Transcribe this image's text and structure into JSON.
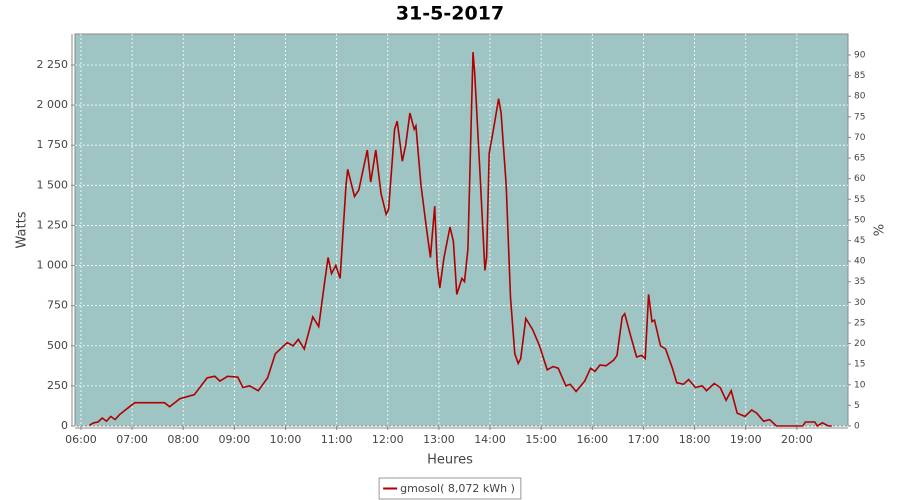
{
  "chart_data": {
    "type": "line",
    "title": "31-5-2017",
    "x_label": "Heures",
    "y_label": "Watts",
    "y2_label": "%",
    "grid": true,
    "legend": "bottom",
    "plot_background": "#9fc4c4",
    "xlim": [
      "05:53",
      "21:00"
    ],
    "xticks": [
      "06:00",
      "07:00",
      "08:00",
      "09:00",
      "10:00",
      "11:00",
      "12:00",
      "13:00",
      "14:00",
      "15:00",
      "16:00",
      "17:00",
      "18:00",
      "19:00",
      "20:00"
    ],
    "ylim": [
      0,
      2443
    ],
    "yticks": [
      0,
      250,
      500,
      750,
      {
        "value": 1000,
        "label": "1 000"
      },
      {
        "value": 1250,
        "label": "1 250"
      },
      {
        "value": 1500,
        "label": "1 500"
      },
      {
        "value": 1750,
        "label": "1 750"
      },
      {
        "value": 2000,
        "label": "2 000"
      },
      {
        "value": 2250,
        "label": "2 250"
      }
    ],
    "y2lim": [
      0,
      95.1
    ],
    "y2ticks": [
      0,
      5,
      10,
      15,
      20,
      25,
      30,
      35,
      40,
      45,
      50,
      55,
      60,
      65,
      70,
      75,
      80,
      85,
      90
    ],
    "x": [
      "06:10",
      "06:15",
      "06:20",
      "06:25",
      "06:30",
      "06:35",
      "06:40",
      "06:45",
      "06:52",
      "07:03",
      "07:38",
      "07:44",
      "07:56",
      "08:13",
      "08:28",
      "08:37",
      "08:43",
      "08:52",
      "09:04",
      "09:10",
      "09:18",
      "09:28",
      "09:39",
      "09:48",
      "10:02",
      "10:09",
      "10:15",
      "10:22",
      "10:32",
      "10:39",
      "10:46",
      "10:50",
      "10:54",
      "10:59",
      "11:04",
      "11:11",
      "11:13",
      "11:21",
      "11:26",
      "11:36",
      "11:40",
      "11:46",
      "11:52",
      "11:58",
      "12:01",
      "12:08",
      "12:11",
      "12:17",
      "12:21",
      "12:26",
      "12:31",
      "12:33",
      "12:39",
      "12:45",
      "12:50",
      "12:55",
      "12:58",
      "13:01",
      "13:06",
      "13:13",
      "13:17",
      "13:21",
      "13:27",
      "13:30",
      "13:34",
      "13:40",
      "13:42",
      "13:48",
      "13:54",
      "13:56",
      "13:59",
      "14:04",
      "14:10",
      "14:13",
      "14:19",
      "14:24",
      "14:29",
      "14:33",
      "14:36",
      "14:42",
      "14:50",
      "14:58",
      "15:07",
      "15:14",
      "15:20",
      "15:29",
      "15:34",
      "15:41",
      "15:51",
      "15:58",
      "16:03",
      "16:09",
      "16:16",
      "16:25",
      "16:29",
      "16:35",
      "16:38",
      "16:45",
      "16:52",
      "16:58",
      "17:02",
      "17:06",
      "17:10",
      "17:13",
      "17:20",
      "17:26",
      "17:34",
      "17:39",
      "17:47",
      "17:53",
      "18:01",
      "18:09",
      "18:14",
      "18:23",
      "18:30",
      "18:37",
      "18:43",
      "18:50",
      "18:59",
      "19:07",
      "19:13",
      "19:21",
      "19:28",
      "19:36",
      "20:07",
      "20:10",
      "20:21",
      "20:24",
      "20:30",
      "20:37",
      "20:41"
    ],
    "series": [
      {
        "name": "gmosol( 8,072 kWh )",
        "color": "#b00000",
        "values": [
          5,
          20,
          25,
          50,
          30,
          60,
          40,
          70,
          100,
          145,
          145,
          120,
          170,
          195,
          300,
          310,
          280,
          310,
          305,
          240,
          250,
          220,
          300,
          450,
          520,
          500,
          540,
          480,
          680,
          620,
          900,
          1050,
          950,
          1000,
          920,
          1500,
          1600,
          1430,
          1470,
          1720,
          1520,
          1720,
          1450,
          1320,
          1350,
          1850,
          1900,
          1650,
          1750,
          1950,
          1850,
          1870,
          1500,
          1250,
          1050,
          1370,
          1000,
          860,
          1050,
          1240,
          1150,
          820,
          920,
          900,
          1100,
          2330,
          2200,
          1600,
          970,
          1050,
          1700,
          1850,
          2040,
          1950,
          1500,
          800,
          450,
          390,
          420,
          670,
          600,
          500,
          350,
          370,
          360,
          250,
          260,
          215,
          280,
          360,
          340,
          380,
          375,
          410,
          440,
          680,
          700,
          560,
          430,
          440,
          420,
          820,
          650,
          660,
          500,
          480,
          360,
          270,
          260,
          290,
          240,
          250,
          220,
          265,
          240,
          160,
          220,
          80,
          60,
          100,
          80,
          30,
          40,
          0,
          0,
          25,
          25,
          0,
          20,
          0,
          0
        ]
      }
    ]
  }
}
